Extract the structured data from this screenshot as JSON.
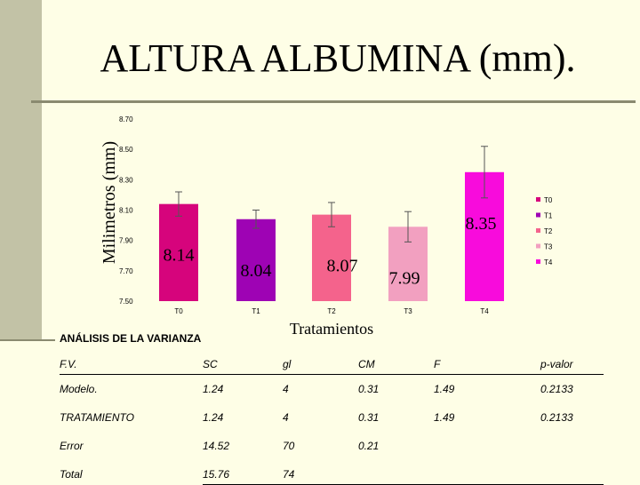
{
  "slide": {
    "title": "ALTURA ALBUMINA (mm).",
    "colors": {
      "background": "#FEFEE6",
      "sidebar": "#C2C2A6"
    }
  },
  "chart_data": {
    "type": "bar",
    "ylabel": "Milimetros (mm)",
    "xlabel": "Tratamientos",
    "categories": [
      "T0",
      "T1",
      "T2",
      "T3",
      "T4"
    ],
    "values": [
      8.14,
      8.04,
      8.07,
      7.99,
      8.35
    ],
    "value_labels": [
      "8.14",
      "8.04",
      "8.07",
      "7.99",
      "8.35"
    ],
    "error": [
      0.08,
      0.06,
      0.08,
      0.1,
      0.17
    ],
    "colors": [
      "#D6047C",
      "#9E03B4",
      "#F4638C",
      "#F2A0C0",
      "#F80BDC"
    ],
    "ylim": [
      7.5,
      8.7
    ],
    "yticks": [
      "7.50",
      "7.70",
      "7.90",
      "8.10",
      "8.30",
      "8.50",
      "8.70"
    ],
    "ytick_values": [
      7.5,
      7.7,
      7.9,
      8.1,
      8.3,
      8.5,
      8.7
    ],
    "legend": [
      "T0",
      "T1",
      "T2",
      "T3",
      "T4"
    ],
    "legend_position": "right",
    "grid": false
  },
  "anova": {
    "title": "ANÁLISIS DE LA VARIANZA",
    "headers": [
      "F.V.",
      "SC",
      "gl",
      "CM",
      "F",
      "p-valor"
    ],
    "rows": [
      [
        "Modelo.",
        "1.24",
        "4",
        "0.31",
        "1.49",
        "0.2133"
      ],
      [
        "TRATAMIENTO",
        "1.24",
        "4",
        "0.31",
        "1.49",
        "0.2133"
      ],
      [
        "Error",
        "14.52",
        "70",
        "0.21",
        "",
        ""
      ],
      [
        "Total",
        "15.76",
        "74",
        "",
        "",
        ""
      ]
    ]
  }
}
